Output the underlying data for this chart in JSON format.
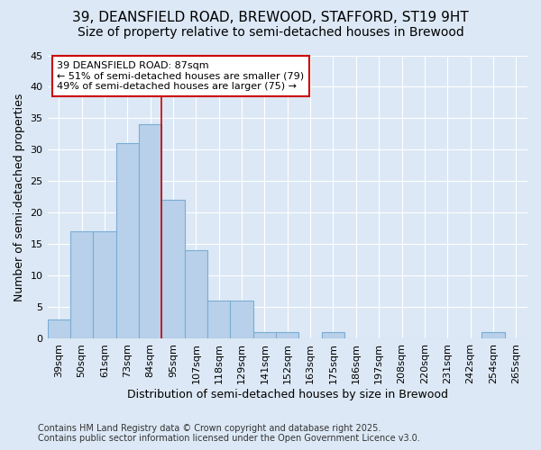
{
  "title_line1": "39, DEANSFIELD ROAD, BREWOOD, STAFFORD, ST19 9HT",
  "title_line2": "Size of property relative to semi-detached houses in Brewood",
  "xlabel": "Distribution of semi-detached houses by size in Brewood",
  "ylabel": "Number of semi-detached properties",
  "footnote": "Contains HM Land Registry data © Crown copyright and database right 2025.\nContains public sector information licensed under the Open Government Licence v3.0.",
  "bin_labels": [
    "39sqm",
    "50sqm",
    "61sqm",
    "73sqm",
    "84sqm",
    "95sqm",
    "107sqm",
    "118sqm",
    "129sqm",
    "141sqm",
    "152sqm",
    "163sqm",
    "175sqm",
    "186sqm",
    "197sqm",
    "208sqm",
    "220sqm",
    "231sqm",
    "242sqm",
    "254sqm",
    "265sqm"
  ],
  "bar_heights": [
    3,
    17,
    17,
    31,
    34,
    22,
    14,
    6,
    6,
    1,
    1,
    0,
    1,
    0,
    0,
    0,
    0,
    0,
    0,
    1,
    0
  ],
  "bar_color": "#b8d0ea",
  "bar_edge_color": "#7aadd4",
  "vline_color": "#cc0000",
  "annotation_text": "39 DEANSFIELD ROAD: 87sqm\n← 51% of semi-detached houses are smaller (79)\n49% of semi-detached houses are larger (75) →",
  "annotation_box_color": "#ffffff",
  "annotation_box_edge": "#cc0000",
  "ylim": [
    0,
    45
  ],
  "yticks": [
    0,
    5,
    10,
    15,
    20,
    25,
    30,
    35,
    40,
    45
  ],
  "background_color": "#dce8f5",
  "grid_color": "#ffffff",
  "title_fontsize": 11,
  "subtitle_fontsize": 10,
  "axis_label_fontsize": 9,
  "tick_fontsize": 8,
  "annotation_fontsize": 8,
  "footnote_fontsize": 7
}
